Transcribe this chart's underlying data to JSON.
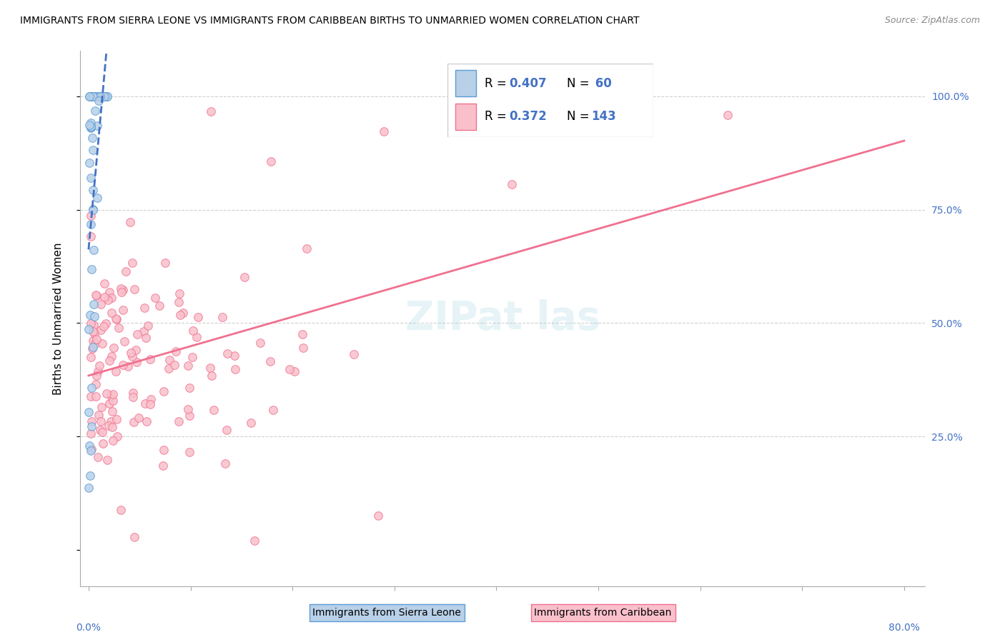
{
  "title": "IMMIGRANTS FROM SIERRA LEONE VS IMMIGRANTS FROM CARIBBEAN BIRTHS TO UNMARRIED WOMEN CORRELATION CHART",
  "source": "Source: ZipAtlas.com",
  "ylabel": "Births to Unmarried Women",
  "color_sierra_fill": "#b8d0e8",
  "color_sierra_edge": "#5b9bd5",
  "color_carib_fill": "#f9c0cb",
  "color_carib_edge": "#f07090",
  "color_blue": "#4472c4",
  "color_text_blue": "#4472c4",
  "legend_r1": "R = 0.407",
  "legend_n1": "N =  60",
  "legend_r2": "R = 0.372",
  "legend_n2": "N = 143",
  "watermark": "ZIPat las"
}
